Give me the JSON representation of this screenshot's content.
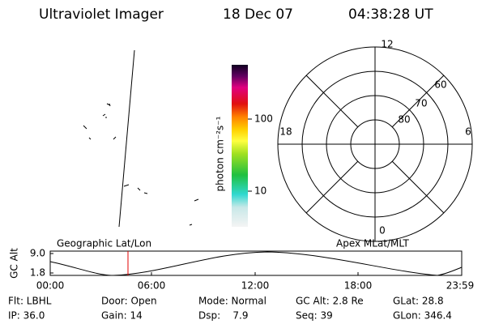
{
  "header": {
    "title": "Ultraviolet Imager",
    "date": "18 Dec 07",
    "time": "04:38:28 UT"
  },
  "colorbar": {
    "label": "photon cm⁻²s⁻¹",
    "ticks": [
      "100",
      "10"
    ]
  },
  "polar": {
    "mlt_labels": [
      "12",
      "18",
      "6",
      "0"
    ],
    "lat_labels": [
      "60",
      "70",
      "80"
    ]
  },
  "orbit": {
    "left_title": "Geographic Lat/Lon",
    "right_title": "Apex MLat/MLT",
    "y_label": "GC Alt",
    "yticks": [
      "9.0",
      "1.8"
    ],
    "xticks": [
      "00:00",
      "06:00",
      "12:00",
      "18:00",
      "23:59"
    ]
  },
  "footer": {
    "rows": [
      [
        "Flt: LBHL",
        "Door: Open",
        "Mode: Normal",
        "GC Alt: 2.8 Re",
        "GLat: 28.8"
      ],
      [
        "IP: 36.0",
        "Gain: 14",
        "Dsp:    7.9",
        "Seq: 39",
        "GLon: 346.4"
      ]
    ]
  }
}
